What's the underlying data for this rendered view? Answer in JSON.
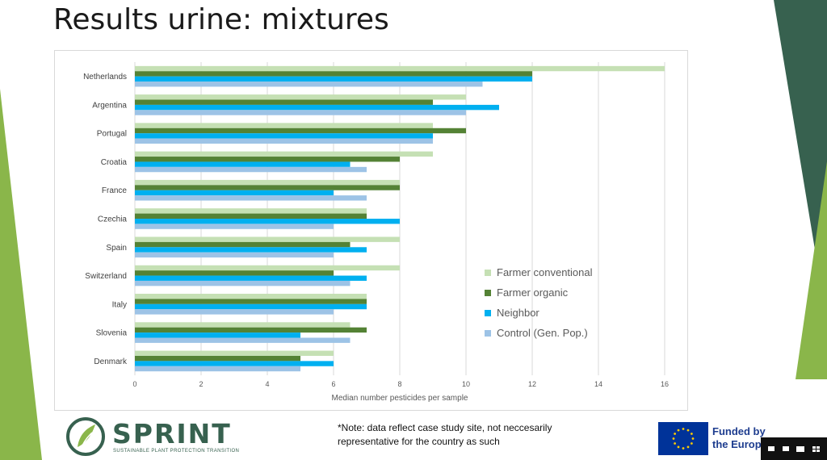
{
  "slide": {
    "title": "Results urine: mixtures",
    "note_line1": "*Note: data reflect case study site, not neccesarily",
    "note_line2": "representative for the country as such"
  },
  "logo": {
    "word": "SPRINT",
    "tagline": "SUSTAINABLE PLANT PROTECTION TRANSITION"
  },
  "eu": {
    "line1": "Funded by",
    "line2": "the Europ"
  },
  "colors": {
    "farmer_conventional": "#c5e0b4",
    "farmer_organic": "#548235",
    "neighbor": "#00b0f0",
    "control": "#9dc3e6",
    "gridline": "#d9d9d9",
    "green_accent": "#8ab64a",
    "dark_teal": "#37614f"
  },
  "chart_data": {
    "type": "bar",
    "orientation": "horizontal",
    "categories": [
      "Netherlands",
      "Argentina",
      "Portugal",
      "Croatia",
      "France",
      "Czechia",
      "Spain",
      "Switzerland",
      "Italy",
      "Slovenia",
      "Denmark"
    ],
    "series": [
      {
        "name": "Farmer conventional",
        "color": "#c5e0b4",
        "values": [
          16,
          10,
          9,
          9,
          8,
          7,
          8,
          8,
          7,
          6.5,
          6
        ]
      },
      {
        "name": "Farmer organic",
        "color": "#548235",
        "values": [
          12,
          9,
          10,
          8,
          8,
          7,
          6.5,
          6,
          7,
          7,
          5
        ]
      },
      {
        "name": "Neighbor",
        "color": "#00b0f0",
        "values": [
          12,
          11,
          9,
          6.5,
          6,
          8,
          7,
          7,
          7,
          5,
          6
        ]
      },
      {
        "name": "Control (Gen. Pop.)",
        "color": "#9dc3e6",
        "values": [
          10.5,
          10,
          9,
          7,
          7,
          6,
          6,
          6.5,
          6,
          6.5,
          5
        ]
      }
    ],
    "xlabel": "Median number pesticides per sample",
    "ylabel": "",
    "xlim": [
      0,
      16
    ],
    "xticks": [
      "0",
      "2",
      "4",
      "6",
      "8",
      "10",
      "12",
      "14",
      "16"
    ],
    "grid": true,
    "legend_position": "bottom-right"
  }
}
